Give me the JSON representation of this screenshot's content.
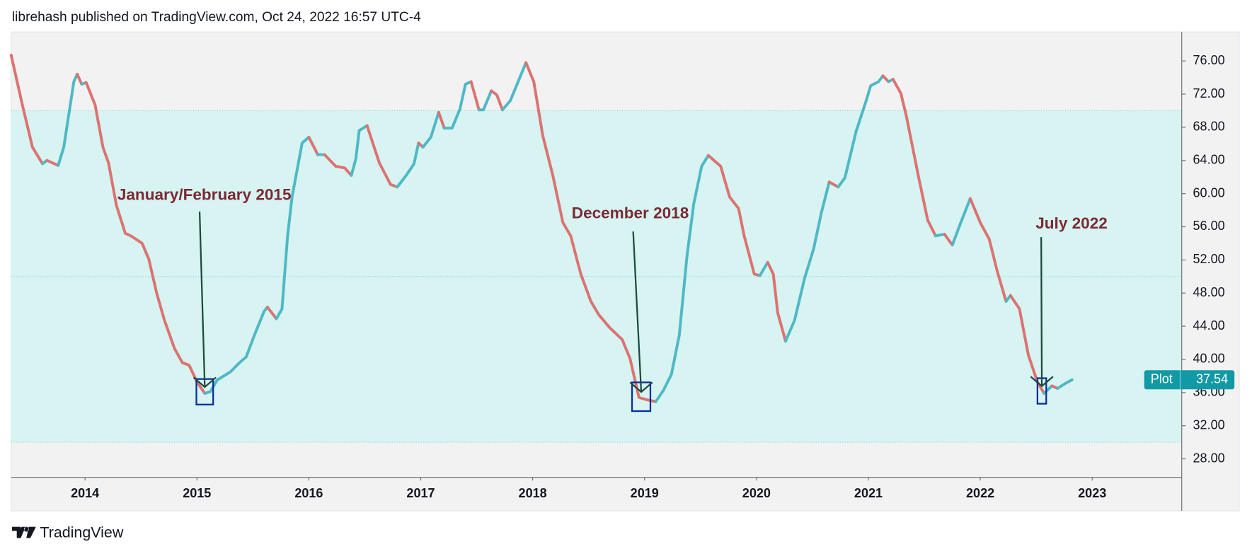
{
  "header": {
    "text": "librehash published on TradingView.com, Oct 24, 2022 16:57 UTC-4"
  },
  "footer": {
    "brand": "TradingView"
  },
  "chart_data": {
    "type": "line",
    "xlim": [
      2013.34,
      2023.8
    ],
    "xticks": [
      2014,
      2015,
      2016,
      2017,
      2018,
      2019,
      2020,
      2021,
      2022,
      2023
    ],
    "ylim": [
      25.77,
      79.5
    ],
    "yticks": [
      {
        "value": 28,
        "label": "28.00"
      },
      {
        "value": 32,
        "label": "32.00"
      },
      {
        "value": 36,
        "label": "36.00"
      },
      {
        "value": 40,
        "label": "40.00"
      },
      {
        "value": 44,
        "label": "44.00"
      },
      {
        "value": 48,
        "label": "48.00"
      },
      {
        "value": 52,
        "label": "52.00"
      },
      {
        "value": 56,
        "label": "56.00"
      },
      {
        "value": 60,
        "label": "60.00"
      },
      {
        "value": 64,
        "label": "64.00"
      },
      {
        "value": 68,
        "label": "68.00"
      },
      {
        "value": 72,
        "label": "72.00"
      },
      {
        "value": 76,
        "label": "76.00"
      }
    ],
    "band": [
      30,
      70
    ],
    "hlines": [
      70,
      50,
      30
    ],
    "band_color": "#d7f3f2",
    "hline_color": "#7fd8d8",
    "up_color": "#4fb8c4",
    "down_color": "#db7371",
    "series": [
      {
        "name": "Plot",
        "color": "#119aa6",
        "x": [
          2013.34,
          2013.44,
          2013.53,
          2013.62,
          2013.66,
          2013.76,
          2013.81,
          2013.9,
          2013.93,
          2013.97,
          2014.01,
          2014.09,
          2014.16,
          2014.21,
          2014.28,
          2014.36,
          2014.41,
          2014.51,
          2014.57,
          2014.64,
          2014.71,
          2014.8,
          2014.87,
          2014.93,
          2015.0,
          2015.07,
          2015.12,
          2015.18,
          2015.3,
          2015.38,
          2015.44,
          2015.51,
          2015.6,
          2015.63,
          2015.71,
          2015.76,
          2015.81,
          2015.85,
          2015.94,
          2016.0,
          2016.08,
          2016.14,
          2016.24,
          2016.32,
          2016.38,
          2016.42,
          2016.45,
          2016.52,
          2016.63,
          2016.73,
          2016.79,
          2016.87,
          2016.94,
          2016.98,
          2017.02,
          2017.09,
          2017.16,
          2017.21,
          2017.28,
          2017.35,
          2017.4,
          2017.45,
          2017.52,
          2017.56,
          2017.63,
          2017.68,
          2017.73,
          2017.8,
          2017.87,
          2017.94,
          2018.01,
          2018.09,
          2018.18,
          2018.27,
          2018.34,
          2018.43,
          2018.52,
          2018.59,
          2018.69,
          2018.8,
          2018.87,
          2018.95,
          2019.03,
          2019.1,
          2019.17,
          2019.24,
          2019.31,
          2019.38,
          2019.44,
          2019.51,
          2019.57,
          2019.68,
          2019.76,
          2019.84,
          2019.89,
          2019.98,
          2020.03,
          2020.1,
          2020.15,
          2020.19,
          2020.26,
          2020.34,
          2020.43,
          2020.51,
          2020.58,
          2020.65,
          2020.73,
          2020.79,
          2020.89,
          2020.98,
          2021.02,
          2021.09,
          2021.13,
          2021.18,
          2021.22,
          2021.29,
          2021.34,
          2021.45,
          2021.53,
          2021.6,
          2021.68,
          2021.75,
          2021.82,
          2021.91,
          2022.0,
          2022.08,
          2022.15,
          2022.23,
          2022.27,
          2022.35,
          2022.43,
          2022.51,
          2022.57,
          2022.64,
          2022.69,
          2022.76,
          2022.82
        ],
        "values": [
          76.7,
          70.7,
          65.6,
          63.6,
          64.0,
          63.4,
          65.6,
          73.5,
          74.4,
          73.2,
          73.4,
          70.7,
          65.6,
          63.7,
          58.6,
          55.2,
          54.9,
          54.0,
          52.1,
          48.0,
          44.7,
          41.3,
          39.6,
          39.3,
          37.3,
          35.9,
          36.1,
          37.5,
          38.5,
          39.6,
          40.3,
          42.8,
          45.8,
          46.3,
          44.9,
          46.1,
          54.9,
          59.6,
          66.1,
          66.8,
          64.7,
          64.7,
          63.3,
          63.1,
          62.2,
          64.2,
          67.6,
          68.2,
          63.7,
          61.1,
          60.8,
          62.2,
          63.6,
          66.1,
          65.6,
          66.8,
          69.8,
          67.9,
          67.9,
          70.2,
          73.2,
          73.5,
          70.1,
          70.1,
          72.4,
          71.9,
          70.1,
          71.2,
          73.5,
          75.8,
          73.5,
          67.0,
          62.2,
          56.5,
          54.9,
          50.3,
          47.0,
          45.4,
          43.8,
          42.4,
          40.1,
          35.4,
          35.1,
          34.9,
          36.3,
          38.2,
          42.9,
          52.6,
          58.8,
          63.3,
          64.6,
          63.3,
          59.6,
          58.2,
          54.9,
          50.3,
          50.1,
          51.7,
          50.3,
          45.6,
          42.2,
          44.7,
          49.8,
          53.3,
          57.7,
          61.4,
          60.8,
          61.9,
          67.5,
          71.2,
          73.0,
          73.5,
          74.2,
          73.5,
          73.8,
          72.1,
          69.3,
          61.9,
          56.8,
          54.9,
          55.1,
          53.8,
          56.3,
          59.4,
          56.5,
          54.5,
          50.7,
          47.0,
          47.7,
          46.1,
          40.5,
          37.3,
          35.9,
          36.8,
          36.5,
          37.1,
          37.54
        ]
      }
    ],
    "annotations": [
      {
        "text": "January/February 2015",
        "x": 2015.07,
        "y": 35.9
      },
      {
        "text": "December 2018",
        "x": 2018.97,
        "y": 35.3
      },
      {
        "text": "July 2022",
        "x": 2022.55,
        "y": 36.0
      }
    ]
  }
}
